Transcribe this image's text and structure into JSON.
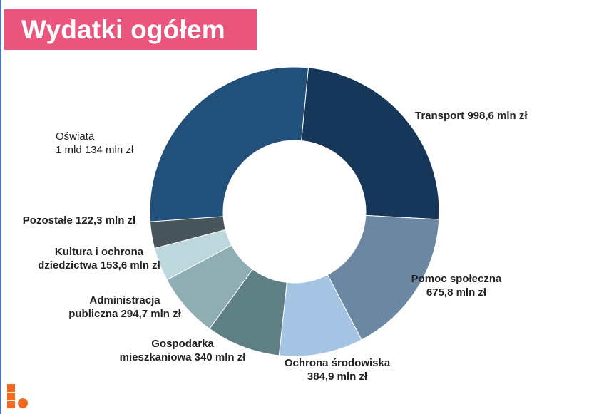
{
  "title": "Wydatki ogółem",
  "colors": {
    "title_bg": "#e9557d",
    "logo": "#f26a21"
  },
  "chart_data": {
    "type": "pie",
    "variant": "donut",
    "title": "Wydatki ogółem",
    "unit": "mln zł",
    "legend": "none",
    "slices": [
      {
        "id": "transport",
        "label_lines": [
          "Transport 998,6 mln zł"
        ],
        "value": 998.6,
        "color": "#17375a",
        "bold": true
      },
      {
        "id": "pomoc",
        "label_lines": [
          "Pomoc społeczna",
          "675,8 mln zł"
        ],
        "value": 675.8,
        "color": "#6b87a2",
        "bold": true
      },
      {
        "id": "ochrona",
        "label_lines": [
          "Ochrona środowiska",
          "384,9 mln zł"
        ],
        "value": 384.9,
        "color": "#a5c4e3",
        "bold": true
      },
      {
        "id": "gospodarka",
        "label_lines": [
          "Gospodarka",
          "mieszkaniowa 340 mln zł"
        ],
        "value": 340.0,
        "color": "#5e7f83",
        "bold": true
      },
      {
        "id": "administracja",
        "label_lines": [
          "Administracja",
          "publiczna 294,7 mln zł"
        ],
        "value": 294.7,
        "color": "#8faeb4",
        "bold": true
      },
      {
        "id": "kultura",
        "label_lines": [
          "Kultura i ochrona",
          "dziedzictwa 153,6 mln zł"
        ],
        "value": 153.6,
        "color": "#bdd8dc",
        "bold": true
      },
      {
        "id": "pozostale",
        "label_lines": [
          "Pozostałe 122,3 mln zł"
        ],
        "value": 122.3,
        "color": "#48555b",
        "bold": true
      },
      {
        "id": "oswiata",
        "label_lines": [
          "Oświata",
          "1 mld 134 mln zł"
        ],
        "value": 1134.0,
        "color": "#21507b",
        "bold": false
      }
    ]
  }
}
